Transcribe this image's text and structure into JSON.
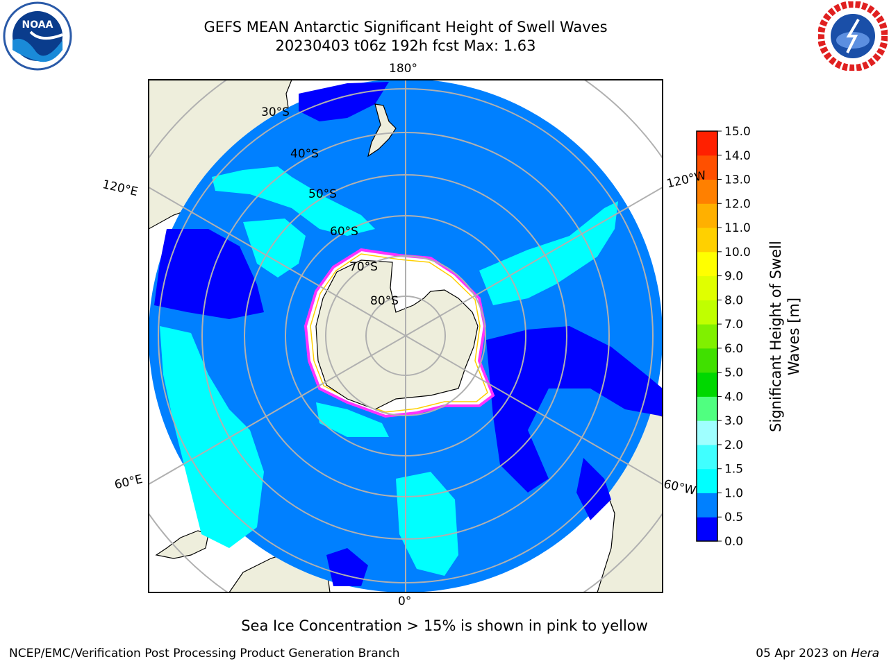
{
  "header": {
    "title_line1": "GEFS MEAN Antarctic Significant Height of Swell Waves",
    "title_line2": "20230403 t06z 192h fcst   Max: 1.63"
  },
  "logos": {
    "left": "noaa-logo",
    "right": "national-weather-service-logo"
  },
  "map": {
    "projection": "south-polar-stereographic",
    "longitude_labels": {
      "top": "180°",
      "bottom": "0°",
      "upper_left": "120°E",
      "upper_right": "120°W",
      "lower_left": "60°E",
      "lower_right": "60°W"
    },
    "latitude_labels": [
      "30°S",
      "40°S",
      "50°S",
      "60°S",
      "70°S",
      "80°S"
    ],
    "colors": {
      "land": "#eeeedc",
      "ocean_low": "#0000ff",
      "ocean_mid": "#0080ff",
      "ocean_high": "#00ffff",
      "ice_edge": "#ff33ff",
      "grid": "#b0b0b0"
    }
  },
  "colorbar": {
    "label": "Significant Height of Swell Waves [m]",
    "ticks": [
      "0.0",
      "0.5",
      "1.0",
      "1.5",
      "2.0",
      "3.0",
      "4.0",
      "5.0",
      "6.0",
      "7.0",
      "8.0",
      "9.0",
      "10.0",
      "11.0",
      "12.0",
      "13.0",
      "14.0",
      "15.0"
    ],
    "colors": [
      "#0000ff",
      "#0080ff",
      "#00ffff",
      "#40ffff",
      "#9fffff",
      "#50ff80",
      "#00d800",
      "#40e000",
      "#80f000",
      "#c0ff00",
      "#e0ff00",
      "#ffff00",
      "#ffd000",
      "#ffb000",
      "#ff8000",
      "#ff5000",
      "#ff2000"
    ]
  },
  "footer": {
    "note": "Sea Ice Concentration > 15% is shown in pink to yellow",
    "left": "NCEP/EMC/Verification Post Processing Product Generation Branch",
    "date": "05 Apr 2023 on ",
    "host": "Hera"
  }
}
